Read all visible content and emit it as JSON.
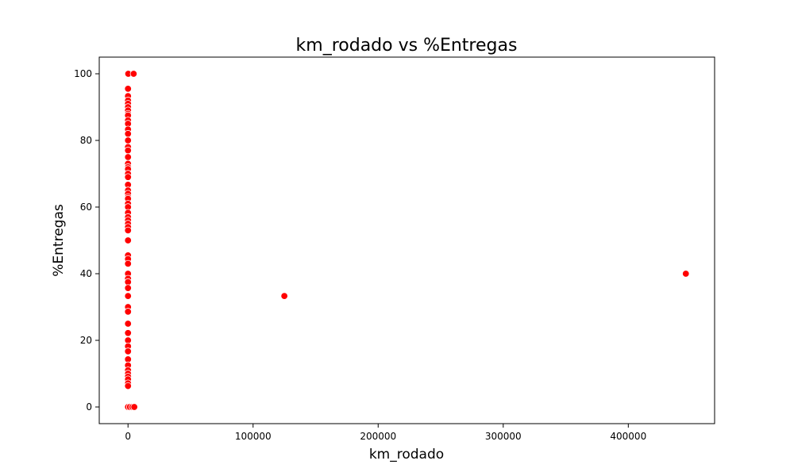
{
  "chart_data": {
    "type": "scatter",
    "title": "km_rodado vs %Entregas",
    "xlabel": "km_rodado",
    "ylabel": "%Entregas",
    "xlim": [
      -23000,
      469000
    ],
    "ylim": [
      -5,
      105
    ],
    "x_ticks": [
      0,
      100000,
      200000,
      300000,
      400000
    ],
    "y_ticks": [
      0,
      20,
      40,
      60,
      80,
      100
    ],
    "grid": false,
    "legend": "none",
    "marker_color": "#ff0000",
    "marker_edge": "#ffffff",
    "series": [
      {
        "points": [
          [
            0,
            100
          ],
          [
            200,
            100
          ],
          [
            4500,
            100
          ],
          [
            0,
            95.5
          ],
          [
            0,
            93.3
          ],
          [
            0,
            92
          ],
          [
            0,
            91
          ],
          [
            0,
            90
          ],
          [
            0,
            89
          ],
          [
            0,
            88
          ],
          [
            0,
            87.5
          ],
          [
            0,
            86
          ],
          [
            0,
            85
          ],
          [
            0,
            83.3
          ],
          [
            0,
            82
          ],
          [
            0,
            80
          ],
          [
            0,
            78
          ],
          [
            0,
            77
          ],
          [
            0,
            75
          ],
          [
            0,
            73
          ],
          [
            0,
            72
          ],
          [
            0,
            71.4
          ],
          [
            0,
            70
          ],
          [
            0,
            69
          ],
          [
            0,
            66.7
          ],
          [
            0,
            65
          ],
          [
            0,
            64
          ],
          [
            0,
            63
          ],
          [
            0,
            62.5
          ],
          [
            0,
            61
          ],
          [
            0,
            60
          ],
          [
            0,
            58.3
          ],
          [
            0,
            57
          ],
          [
            0,
            56
          ],
          [
            0,
            55
          ],
          [
            0,
            54
          ],
          [
            0,
            53
          ],
          [
            0,
            50
          ],
          [
            0,
            45.5
          ],
          [
            0,
            44.4
          ],
          [
            0,
            43
          ],
          [
            0,
            40
          ],
          [
            0,
            38.5
          ],
          [
            0,
            37.5
          ],
          [
            0,
            35.7
          ],
          [
            0,
            33.3
          ],
          [
            0,
            30
          ],
          [
            0,
            28.6
          ],
          [
            0,
            25
          ],
          [
            0,
            22.2
          ],
          [
            0,
            20
          ],
          [
            0,
            18.2
          ],
          [
            0,
            16.7
          ],
          [
            0,
            14.3
          ],
          [
            0,
            12.5
          ],
          [
            0,
            11
          ],
          [
            0,
            10
          ],
          [
            0,
            9.1
          ],
          [
            0,
            8.3
          ],
          [
            0,
            7.1
          ],
          [
            0,
            6.3
          ],
          [
            0,
            0
          ],
          [
            1500,
            0
          ],
          [
            3500,
            0
          ],
          [
            5000,
            0
          ],
          [
            125000,
            33.3
          ],
          [
            446000,
            40
          ]
        ]
      }
    ]
  }
}
